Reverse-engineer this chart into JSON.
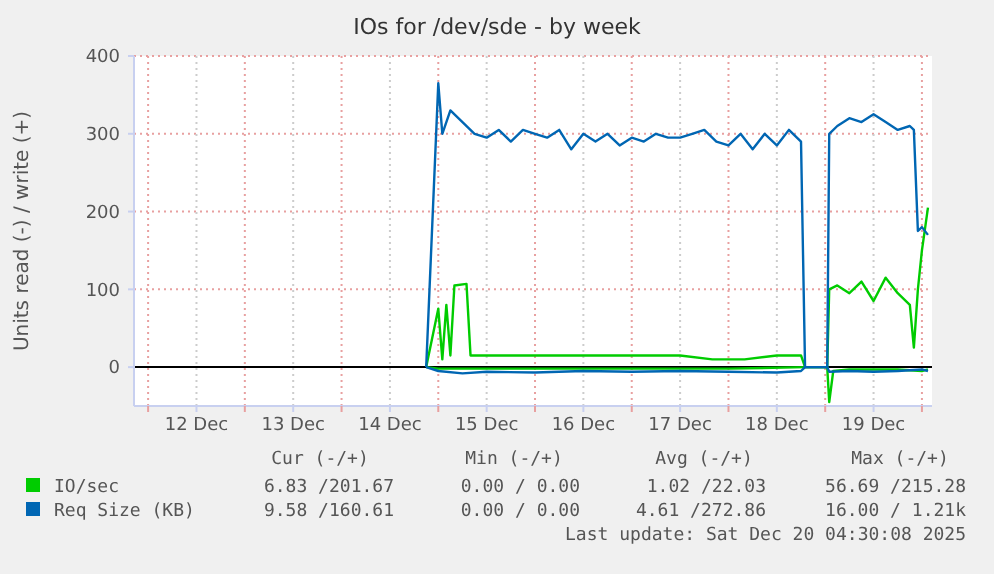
{
  "chart_data": {
    "type": "line",
    "title": "IOs for /dev/sde - by week",
    "ylabel": "Units read (-) / write (+)",
    "xlim": [
      "2025-12-11T20:30",
      "2025-12-20T02:30"
    ],
    "xticks": [
      {
        "value": "2025-12-12T00:00",
        "label": null
      },
      {
        "value": "2025-12-12T12:00",
        "label": "12 Dec"
      },
      {
        "value": "2025-12-13T00:00",
        "label": null
      },
      {
        "value": "2025-12-13T12:00",
        "label": "13 Dec"
      },
      {
        "value": "2025-12-14T00:00",
        "label": null
      },
      {
        "value": "2025-12-14T12:00",
        "label": "14 Dec"
      },
      {
        "value": "2025-12-15T00:00",
        "label": null
      },
      {
        "value": "2025-12-15T12:00",
        "label": "15 Dec"
      },
      {
        "value": "2025-12-16T00:00",
        "label": null
      },
      {
        "value": "2025-12-16T12:00",
        "label": "16 Dec"
      },
      {
        "value": "2025-12-17T00:00",
        "label": null
      },
      {
        "value": "2025-12-17T12:00",
        "label": "17 Dec"
      },
      {
        "value": "2025-12-18T00:00",
        "label": null
      },
      {
        "value": "2025-12-18T12:00",
        "label": "18 Dec"
      },
      {
        "value": "2025-12-19T00:00",
        "label": null
      },
      {
        "value": "2025-12-19T12:00",
        "label": "19 Dec"
      },
      {
        "value": "2025-12-20T00:00",
        "label": null
      }
    ],
    "ylim": [
      -50,
      400
    ],
    "yticks": [
      0,
      100,
      200,
      300,
      400
    ],
    "grid": true,
    "legend": "bottom",
    "ref_lines": [
      {
        "axis": "y",
        "value": 0,
        "color": "#000000"
      }
    ],
    "series": [
      {
        "name": "IO/sec",
        "color": "#00cc00",
        "x": [
          "2025-12-14T21:00",
          "2025-12-15T00:00",
          "2025-12-15T01:00",
          "2025-12-15T02:00",
          "2025-12-15T03:00",
          "2025-12-15T04:00",
          "2025-12-15T07:00",
          "2025-12-15T08:00",
          "2025-12-15T12:00",
          "2025-12-16T00:00",
          "2025-12-16T12:00",
          "2025-12-17T00:00",
          "2025-12-17T12:00",
          "2025-12-17T20:00",
          "2025-12-18T04:00",
          "2025-12-18T12:00",
          "2025-12-18T18:00",
          "2025-12-18T19:00",
          "2025-12-19T00:30",
          "2025-12-19T01:00",
          "2025-12-19T03:00",
          "2025-12-19T06:00",
          "2025-12-19T09:00",
          "2025-12-19T12:00",
          "2025-12-19T15:00",
          "2025-12-19T18:00",
          "2025-12-19T21:00",
          "2025-12-19T22:00",
          "2025-12-19T23:00",
          "2025-12-20T00:00",
          "2025-12-20T01:30"
        ],
        "values": [
          0,
          75,
          10,
          80,
          15,
          105,
          107,
          15,
          15,
          15,
          15,
          15,
          15,
          10,
          10,
          15,
          15,
          0,
          0,
          100,
          105,
          95,
          110,
          85,
          115,
          95,
          80,
          25,
          100,
          150,
          205
        ]
      },
      {
        "color": "#00cc00",
        "x": [
          "2025-12-14T21:00",
          "2025-12-15T00:00",
          "2025-12-16T00:00",
          "2025-12-17T00:00",
          "2025-12-18T00:00",
          "2025-12-18T19:00",
          "2025-12-19T00:30",
          "2025-12-19T01:00",
          "2025-12-19T02:00",
          "2025-12-19T06:00",
          "2025-12-19T12:00",
          "2025-12-19T18:00",
          "2025-12-20T00:00",
          "2025-12-20T01:30"
        ],
        "values": [
          0,
          -2,
          -2,
          -2,
          -2,
          0,
          0,
          -45,
          -5,
          -3,
          -3,
          -3,
          -5,
          -3
        ]
      },
      {
        "name": "Req Size (KB)",
        "color": "#0066b3",
        "x": [
          "2025-12-14T21:00",
          "2025-12-15T00:00",
          "2025-12-15T01:00",
          "2025-12-15T03:00",
          "2025-12-15T06:00",
          "2025-12-15T09:00",
          "2025-12-15T12:00",
          "2025-12-15T15:00",
          "2025-12-15T18:00",
          "2025-12-15T21:00",
          "2025-12-16T00:00",
          "2025-12-16T03:00",
          "2025-12-16T06:00",
          "2025-12-16T09:00",
          "2025-12-16T12:00",
          "2025-12-16T15:00",
          "2025-12-16T18:00",
          "2025-12-16T21:00",
          "2025-12-17T00:00",
          "2025-12-17T03:00",
          "2025-12-17T06:00",
          "2025-12-17T09:00",
          "2025-12-17T12:00",
          "2025-12-17T15:00",
          "2025-12-17T18:00",
          "2025-12-17T21:00",
          "2025-12-18T00:00",
          "2025-12-18T03:00",
          "2025-12-18T06:00",
          "2025-12-18T09:00",
          "2025-12-18T12:00",
          "2025-12-18T15:00",
          "2025-12-18T18:00",
          "2025-12-18T19:00",
          "2025-12-19T00:30",
          "2025-12-19T01:00",
          "2025-12-19T03:00",
          "2025-12-19T06:00",
          "2025-12-19T09:00",
          "2025-12-19T12:00",
          "2025-12-19T15:00",
          "2025-12-19T18:00",
          "2025-12-19T21:00",
          "2025-12-19T22:00",
          "2025-12-19T23:00",
          "2025-12-20T00:00",
          "2025-12-20T01:30"
        ],
        "values": [
          0,
          365,
          300,
          330,
          315,
          300,
          295,
          305,
          290,
          305,
          300,
          295,
          305,
          280,
          300,
          290,
          300,
          285,
          295,
          290,
          300,
          295,
          295,
          300,
          305,
          290,
          285,
          300,
          280,
          300,
          285,
          305,
          290,
          0,
          0,
          300,
          310,
          320,
          315,
          325,
          315,
          305,
          310,
          305,
          175,
          180,
          170
        ]
      },
      {
        "color": "#0066b3",
        "x": [
          "2025-12-14T21:00",
          "2025-12-15T00:00",
          "2025-12-15T06:00",
          "2025-12-15T12:00",
          "2025-12-16T00:00",
          "2025-12-16T12:00",
          "2025-12-17T00:00",
          "2025-12-17T12:00",
          "2025-12-18T00:00",
          "2025-12-18T12:00",
          "2025-12-18T18:00",
          "2025-12-18T19:00",
          "2025-12-19T00:30",
          "2025-12-19T01:00",
          "2025-12-19T06:00",
          "2025-12-19T12:00",
          "2025-12-19T18:00",
          "2025-12-20T00:00",
          "2025-12-20T01:30"
        ],
        "values": [
          0,
          -5,
          -8,
          -6,
          -7,
          -5,
          -6,
          -5,
          -6,
          -7,
          -5,
          0,
          0,
          -6,
          -5,
          -6,
          -5,
          -3,
          -5
        ]
      }
    ],
    "annotations": [
      "Cur (-/+)",
      "Min (-/+)",
      "Avg (-/+)",
      "Max (-/+)",
      "6.83 /201.67",
      "0.00 / 0.00",
      "1.02 /22.03",
      "56.69 /215.28",
      "9.58 /160.61",
      "0.00 / 0.00",
      "4.61 /272.86",
      "16.00 / 1.21k",
      "Last update: Sat Dec 20 04:30:08 2025"
    ]
  }
}
